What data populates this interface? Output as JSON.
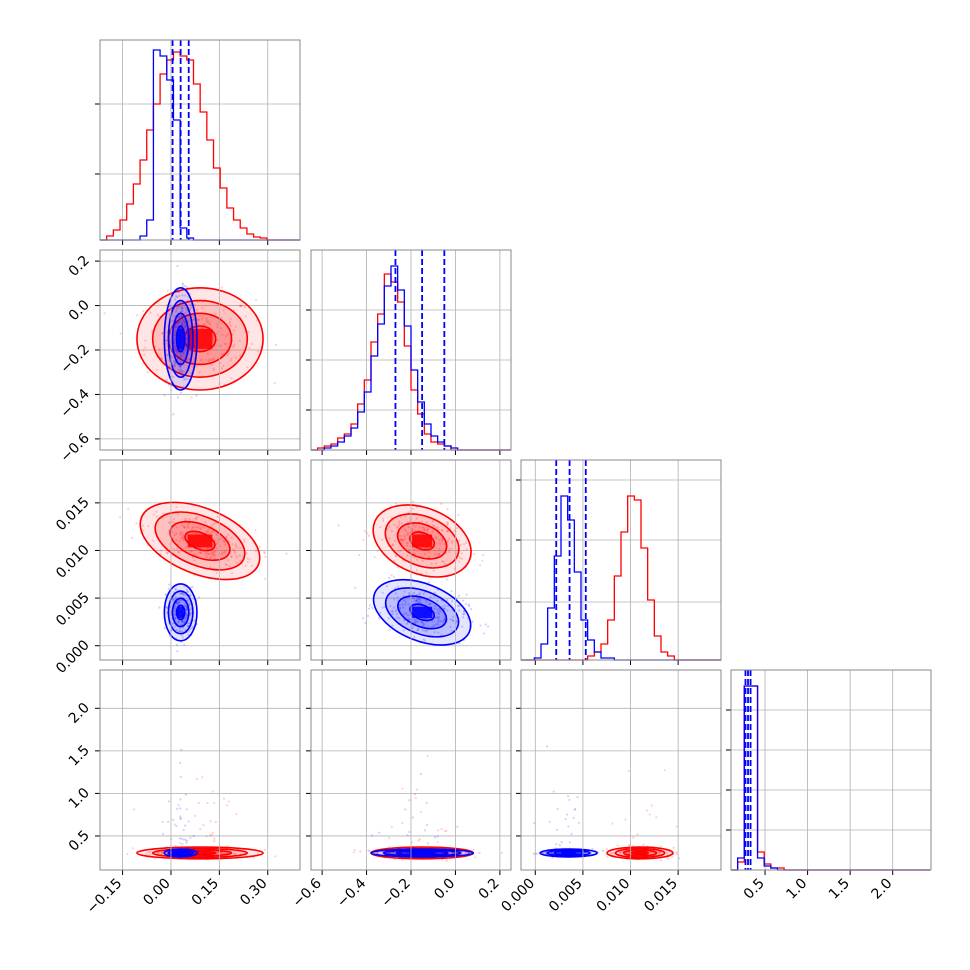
{
  "chart_data": {
    "type": "corner",
    "title": "",
    "colors": {
      "series_a": "#0000ff",
      "series_b": "#ff0000",
      "grid": "#b0b0b0",
      "frame": "#888888"
    },
    "series": [
      {
        "name": "",
        "color": "#0000ff",
        "means": [
          0.03,
          -0.15,
          0.0035,
          0.3
        ],
        "sds": [
          0.022,
          0.1,
          0.0013,
          0.02
        ],
        "quantile_lines": [
          [
            0.005,
            0.03,
            0.055
          ],
          [
            -0.27,
            -0.15,
            -0.05
          ],
          [
            0.0022,
            0.0036,
            0.0053
          ],
          [
            0.27,
            0.3,
            0.33
          ]
        ]
      },
      {
        "name": "",
        "color": "#ff0000",
        "means": [
          0.09,
          -0.15,
          0.011,
          0.3
        ],
        "sds": [
          0.085,
          0.1,
          0.0015,
          0.03
        ]
      }
    ],
    "axes": [
      {
        "range": [
          -0.22,
          0.4
        ],
        "ticks": [
          -0.15,
          0.0,
          0.15,
          0.3
        ],
        "tick_labels": [
          "−0.15",
          "0.00",
          "0.15",
          "0.30"
        ]
      },
      {
        "range": [
          -0.65,
          0.25
        ],
        "ticks": [
          -0.6,
          -0.4,
          -0.2,
          0.0,
          0.2
        ],
        "tick_labels": [
          "−0.6",
          "−0.4",
          "−0.2",
          "0.0",
          "0.2"
        ]
      },
      {
        "range": [
          -0.0015,
          0.0195
        ],
        "ticks": [
          0.0,
          0.005,
          0.01,
          0.015
        ],
        "tick_labels": [
          "0.000",
          "0.005",
          "0.010",
          "0.015"
        ]
      },
      {
        "range": [
          0.1,
          2.45
        ],
        "ticks": [
          0.5,
          1.0,
          1.5,
          2.0
        ],
        "tick_labels": [
          "0.5",
          "1.0",
          "1.5",
          "2.0"
        ]
      }
    ],
    "histograms": [
      {
        "bin_start": -0.22,
        "bin_width": 0.0207,
        "blue": [
          0,
          0,
          0,
          0,
          0,
          0,
          0.02,
          0.1,
          0.95,
          0.92,
          0.8,
          0.6,
          0.06,
          0.01,
          0,
          0,
          0,
          0,
          0,
          0,
          0,
          0,
          0,
          0,
          0,
          0,
          0,
          0,
          0,
          0
        ],
        "red": [
          0,
          0.02,
          0.05,
          0.1,
          0.18,
          0.28,
          0.4,
          0.55,
          0.68,
          0.83,
          0.9,
          0.94,
          0.92,
          0.9,
          0.78,
          0.64,
          0.5,
          0.36,
          0.26,
          0.16,
          0.1,
          0.06,
          0.03,
          0.015,
          0.01,
          0,
          0,
          0,
          0,
          0
        ]
      },
      {
        "bin_start": -0.65,
        "bin_width": 0.03,
        "blue": [
          0,
          0,
          0.01,
          0.02,
          0.04,
          0.07,
          0.11,
          0.19,
          0.29,
          0.47,
          0.63,
          0.82,
          0.92,
          0.8,
          0.62,
          0.4,
          0.24,
          0.13,
          0.07,
          0.04,
          0.02,
          0.01,
          0,
          0,
          0,
          0,
          0,
          0,
          0,
          0
        ],
        "red": [
          0,
          0.01,
          0.02,
          0.03,
          0.06,
          0.08,
          0.13,
          0.23,
          0.35,
          0.54,
          0.68,
          0.88,
          0.84,
          0.74,
          0.52,
          0.3,
          0.18,
          0.08,
          0.04,
          0.03,
          0.02,
          0,
          0,
          0,
          0,
          0,
          0,
          0,
          0,
          0
        ]
      },
      {
        "bin_start": -0.0015,
        "bin_width": 0.0007,
        "blue": [
          0,
          0,
          0.01,
          0.08,
          0.26,
          0.52,
          0.82,
          0.7,
          0.44,
          0.2,
          0.1,
          0.04,
          0.01,
          0.01,
          0,
          0,
          0,
          0,
          0,
          0,
          0,
          0,
          0,
          0,
          0,
          0,
          0,
          0,
          0,
          0
        ],
        "red": [
          0,
          0,
          0,
          0,
          0,
          0,
          0,
          0,
          0,
          0,
          0.02,
          0.04,
          0.08,
          0.2,
          0.42,
          0.64,
          0.82,
          0.8,
          0.56,
          0.3,
          0.12,
          0.04,
          0.02,
          0,
          0,
          0,
          0,
          0,
          0,
          0
        ]
      },
      {
        "bin_start": 0.1,
        "bin_width": 0.078,
        "blue": [
          0,
          0.06,
          0.92,
          0.92,
          0.06,
          0.02,
          0.01,
          0,
          0,
          0,
          0,
          0,
          0,
          0,
          0,
          0,
          0,
          0,
          0,
          0,
          0,
          0,
          0,
          0,
          0,
          0,
          0,
          0,
          0,
          0
        ],
        "red": [
          0,
          0.04,
          0.92,
          0.92,
          0.09,
          0.03,
          0.01,
          0.01,
          0,
          0,
          0,
          0,
          0,
          0,
          0,
          0,
          0,
          0,
          0,
          0,
          0,
          0,
          0,
          0,
          0,
          0,
          0,
          0,
          0,
          0
        ]
      }
    ],
    "grid": true,
    "legend": "none"
  }
}
